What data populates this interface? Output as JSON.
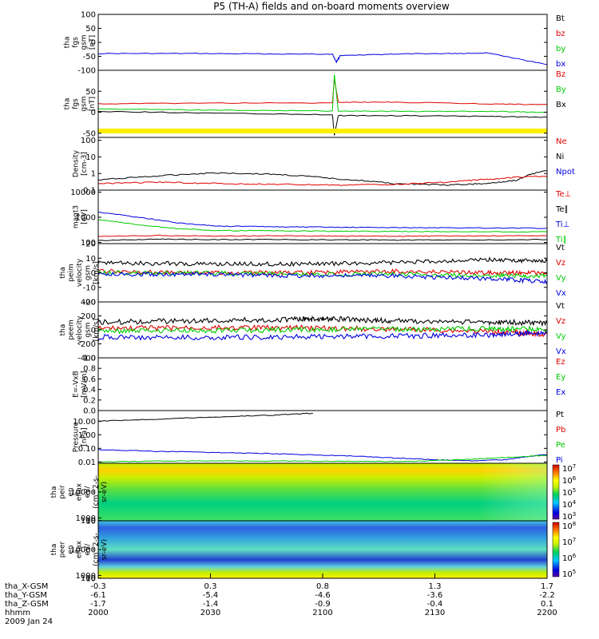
{
  "title": "P5 (TH-A) fields and on-board moments overview",
  "date_label": "2009 Jan 24",
  "footer": {
    "rows": [
      {
        "label": "tha_X-GSM",
        "values": [
          "-0.3",
          "0.3",
          "0.8",
          "1.3",
          "1.7"
        ]
      },
      {
        "label": "tha_Y-GSM",
        "values": [
          "-6.1",
          "-5.4",
          "-4.6",
          "-3.6",
          "-2.2"
        ]
      },
      {
        "label": "tha_Z-GSM",
        "values": [
          "-1.7",
          "-1.4",
          "-0.9",
          "-0.4",
          "0.1"
        ]
      },
      {
        "label": "hhmm",
        "values": [
          "2000",
          "2030",
          "2100",
          "2130",
          "2200"
        ]
      }
    ]
  },
  "colors": {
    "black": "#000000",
    "red": "#e00000",
    "green": "#00cc00",
    "blue": "#0000e0",
    "yellow": "#ffee00"
  },
  "chart_data": [
    {
      "id": "fgs_gse",
      "type": "line",
      "ylabel": [
        "tha",
        "fgs",
        "gsm",
        "[nT]"
      ],
      "ylim": [
        -100,
        100
      ],
      "yticks": [
        "100",
        "50",
        "0",
        "-50",
        "-100"
      ],
      "legend": [
        {
          "name": "Bt",
          "color": "#000000"
        },
        {
          "name": "bz",
          "color": "#e00000"
        },
        {
          "name": "by",
          "color": "#00cc00"
        },
        {
          "name": "bx",
          "color": "#0000e0"
        }
      ],
      "series": [
        {
          "name": "bx",
          "color": "#0000e0",
          "x": [
            0,
            50,
            100,
            120,
            122,
            124,
            150,
            180,
            200,
            230
          ],
          "y": [
            -40,
            -40,
            -42,
            -42,
            -70,
            -48,
            -42,
            -40,
            -38,
            -80
          ]
        }
      ]
    },
    {
      "id": "fgs_gsm",
      "type": "line",
      "ylabel": [
        "tha",
        "fgs",
        "gsm",
        "[nT]"
      ],
      "ylim": [
        -60,
        100
      ],
      "yticks": [
        "50",
        "0",
        "-50"
      ],
      "legend": [
        {
          "name": "Bz",
          "color": "#e00000"
        },
        {
          "name": "By",
          "color": "#00cc00"
        },
        {
          "name": "Bx",
          "color": "#000000"
        }
      ],
      "series": [
        {
          "name": "Bz",
          "color": "#e00000",
          "x": [
            0,
            60,
            120,
            121,
            123,
            150,
            200,
            230
          ],
          "y": [
            20,
            22,
            22,
            80,
            24,
            24,
            20,
            18
          ]
        },
        {
          "name": "By",
          "color": "#00cc00",
          "x": [
            0,
            60,
            120,
            121,
            123,
            150,
            200,
            230
          ],
          "y": [
            8,
            5,
            3,
            90,
            3,
            2,
            2,
            0
          ]
        },
        {
          "name": "Bx",
          "color": "#000000",
          "x": [
            0,
            60,
            120,
            121,
            123,
            150,
            200,
            230
          ],
          "y": [
            2,
            -2,
            -6,
            -55,
            -8,
            -8,
            -10,
            -12
          ]
        }
      ]
    },
    {
      "id": "density",
      "type": "line",
      "scale": "log",
      "ylabel": [
        "Density",
        "[cm-3]"
      ],
      "ylim": [
        0.1,
        150
      ],
      "yticks": [
        "100",
        "10",
        "1",
        "0.1"
      ],
      "legend": [
        {
          "name": "Ne",
          "color": "#e00000"
        },
        {
          "name": "Ni",
          "color": "#000000"
        },
        {
          "name": "Npot",
          "color": "#0000e0"
        }
      ],
      "series": [
        {
          "name": "Ni",
          "color": "#000000",
          "x": [
            0,
            30,
            60,
            90,
            120,
            150,
            180,
            200,
            215,
            230
          ],
          "y": [
            0.4,
            0.7,
            1.1,
            0.9,
            0.5,
            0.25,
            0.2,
            0.25,
            0.4,
            1.5
          ]
        },
        {
          "name": "Ne",
          "color": "#e00000",
          "x": [
            0,
            30,
            60,
            90,
            120,
            150,
            180,
            200,
            215,
            230
          ],
          "y": [
            0.25,
            0.3,
            0.25,
            0.22,
            0.2,
            0.22,
            0.3,
            0.45,
            0.6,
            0.7
          ]
        }
      ]
    },
    {
      "id": "temperature",
      "type": "line",
      "scale": "log",
      "ylabel": [
        "magt3",
        "[eV]"
      ],
      "ylim": [
        90,
        12000
      ],
      "yticks": [
        "10000",
        "1000",
        "100"
      ],
      "legend": [
        {
          "name": "Te⊥",
          "color": "#e00000"
        },
        {
          "name": "Te∥",
          "color": "#000000"
        },
        {
          "name": "Ti⊥",
          "color": "#0000e0"
        },
        {
          "name": "Ti∥",
          "color": "#00cc00"
        }
      ],
      "series": [
        {
          "name": "Ti⊥",
          "color": "#0000e0",
          "x": [
            0,
            20,
            40,
            60,
            90,
            120,
            150,
            180,
            230
          ],
          "y": [
            1600,
            1000,
            600,
            450,
            420,
            400,
            390,
            380,
            370
          ]
        },
        {
          "name": "Ti∥",
          "color": "#00cc00",
          "x": [
            0,
            20,
            40,
            60,
            90,
            120,
            150,
            180,
            230
          ],
          "y": [
            800,
            500,
            350,
            300,
            290,
            280,
            275,
            270,
            265
          ]
        },
        {
          "name": "Te⊥",
          "color": "#e00000",
          "x": [
            0,
            30,
            60,
            90,
            120,
            150,
            180,
            230
          ],
          "y": [
            170,
            190,
            180,
            185,
            180,
            175,
            180,
            185
          ]
        },
        {
          "name": "Te∥",
          "color": "#000000",
          "x": [
            0,
            30,
            60,
            90,
            120,
            150,
            180,
            230
          ],
          "y": [
            120,
            135,
            130,
            130,
            128,
            125,
            125,
            130
          ]
        }
      ]
    },
    {
      "id": "peim_velocity",
      "type": "line",
      "ylabel": [
        "tha",
        "peim",
        "velocity",
        "gsm",
        "[km/s]"
      ],
      "ylim": [
        -20,
        20
      ],
      "yticks": [
        "20",
        "10",
        "0",
        "-10",
        "-20"
      ],
      "legend": [
        {
          "name": "Vt",
          "color": "#000000"
        },
        {
          "name": "Vz",
          "color": "#e00000"
        },
        {
          "name": "Vy",
          "color": "#00cc00"
        },
        {
          "name": "Vx",
          "color": "#0000e0"
        }
      ],
      "series": [
        {
          "name": "Vt",
          "color": "#000000",
          "x": [
            0,
            50,
            100,
            150,
            200,
            230
          ],
          "y": [
            7,
            6,
            6,
            7,
            9,
            8
          ]
        },
        {
          "name": "Vz",
          "color": "#e00000",
          "x": [
            0,
            50,
            100,
            150,
            200,
            230
          ],
          "y": [
            1,
            0,
            0,
            1,
            0,
            0
          ]
        },
        {
          "name": "Vy",
          "color": "#00cc00",
          "x": [
            0,
            50,
            100,
            150,
            200,
            230
          ],
          "y": [
            0,
            0,
            -1,
            -1,
            -2,
            -2
          ]
        },
        {
          "name": "Vx",
          "color": "#0000e0",
          "x": [
            0,
            50,
            100,
            150,
            200,
            230
          ],
          "y": [
            -1,
            -1,
            -2,
            -2,
            -4,
            -6
          ]
        }
      ]
    },
    {
      "id": "peem_velocity",
      "type": "line",
      "ylabel": [
        "tha",
        "peem",
        "velocity",
        "gsm",
        "[km/s]"
      ],
      "ylim": [
        -400,
        400
      ],
      "yticks": [
        "400",
        "200",
        "0",
        "-200",
        "-400"
      ],
      "legend": [
        {
          "name": "Vt",
          "color": "#000000"
        },
        {
          "name": "Vz",
          "color": "#e00000"
        },
        {
          "name": "Vy",
          "color": "#00cc00"
        },
        {
          "name": "Vx",
          "color": "#0000e0"
        }
      ],
      "series": [
        {
          "name": "Vt",
          "color": "#000000",
          "x": [
            0,
            50,
            100,
            120,
            150,
            200,
            230
          ],
          "y": [
            110,
            130,
            150,
            160,
            130,
            110,
            100
          ]
        },
        {
          "name": "Vz",
          "color": "#e00000",
          "x": [
            0,
            50,
            100,
            150,
            200,
            230
          ],
          "y": [
            20,
            30,
            30,
            10,
            -20,
            -60
          ]
        },
        {
          "name": "Vy",
          "color": "#00cc00",
          "x": [
            0,
            50,
            100,
            150,
            200,
            230
          ],
          "y": [
            -20,
            -10,
            0,
            10,
            20,
            10
          ]
        },
        {
          "name": "Vx",
          "color": "#0000e0",
          "x": [
            0,
            50,
            100,
            150,
            200,
            230
          ],
          "y": [
            -100,
            -110,
            -100,
            -90,
            -70,
            -40
          ]
        }
      ]
    },
    {
      "id": "efield",
      "type": "line",
      "ylabel": [
        "E=-VxB",
        "[mV/m]"
      ],
      "ylim": [
        0,
        1
      ],
      "yticks": [
        "1.0",
        "0.8",
        "0.6",
        "0.4",
        "0.2",
        "0.0"
      ],
      "legend": [
        {
          "name": "Ez",
          "color": "#e00000"
        },
        {
          "name": "Ey",
          "color": "#00cc00"
        },
        {
          "name": "Ex",
          "color": "#0000e0"
        }
      ],
      "series": []
    },
    {
      "id": "pressure",
      "type": "line",
      "scale": "log",
      "ylabel": [
        "Pressure",
        "[nPa]"
      ],
      "ylim": [
        0.008,
        60
      ],
      "yticks": [
        "10.00",
        "1.00",
        "0.10",
        "0.01"
      ],
      "legend": [
        {
          "name": "Pt",
          "color": "#000000"
        },
        {
          "name": "Pb",
          "color": "#e00000"
        },
        {
          "name": "Pe",
          "color": "#00cc00"
        },
        {
          "name": "Pi",
          "color": "#0000e0"
        }
      ],
      "series": [
        {
          "name": "Pt",
          "color": "#000000",
          "x": [
            0,
            30,
            60,
            90,
            110
          ],
          "y": [
            10,
            14,
            20,
            28,
            38
          ]
        },
        {
          "name": "Pi",
          "color": "#0000e0",
          "x": [
            0,
            30,
            60,
            90,
            120,
            150,
            170,
            190,
            210,
            230
          ],
          "y": [
            0.08,
            0.06,
            0.05,
            0.04,
            0.03,
            0.02,
            0.015,
            0.012,
            0.015,
            0.035
          ]
        },
        {
          "name": "Pe",
          "color": "#00cc00",
          "x": [
            0,
            40,
            80,
            120,
            160,
            190,
            210,
            230
          ],
          "y": [
            0.01,
            0.012,
            0.012,
            0.011,
            0.011,
            0.015,
            0.022,
            0.03
          ]
        }
      ]
    },
    {
      "id": "peir_spec",
      "type": "heatmap",
      "ylabel": [
        "tha",
        "peir",
        "en",
        "eflux",
        "eV/",
        "(cm^2-s-",
        "sr-eV)"
      ],
      "ylim": [
        5,
        20000
      ],
      "yticks": [
        "10000",
        "1000",
        "100",
        "10"
      ],
      "colorbar": [
        "10^7",
        "10^6",
        "10^5",
        "10^4",
        "10^3"
      ]
    },
    {
      "id": "peer_spec",
      "type": "heatmap",
      "ylabel": [
        "tha",
        "peer",
        "en",
        "eflux",
        "eV/",
        "(cm^2-s-",
        "sr-eV)"
      ],
      "ylim": [
        8,
        20000
      ],
      "yticks": [
        "10000",
        "1000",
        "100",
        "10"
      ],
      "colorbar": [
        "10^8",
        "10^7",
        "10^6",
        "10^5"
      ]
    }
  ]
}
